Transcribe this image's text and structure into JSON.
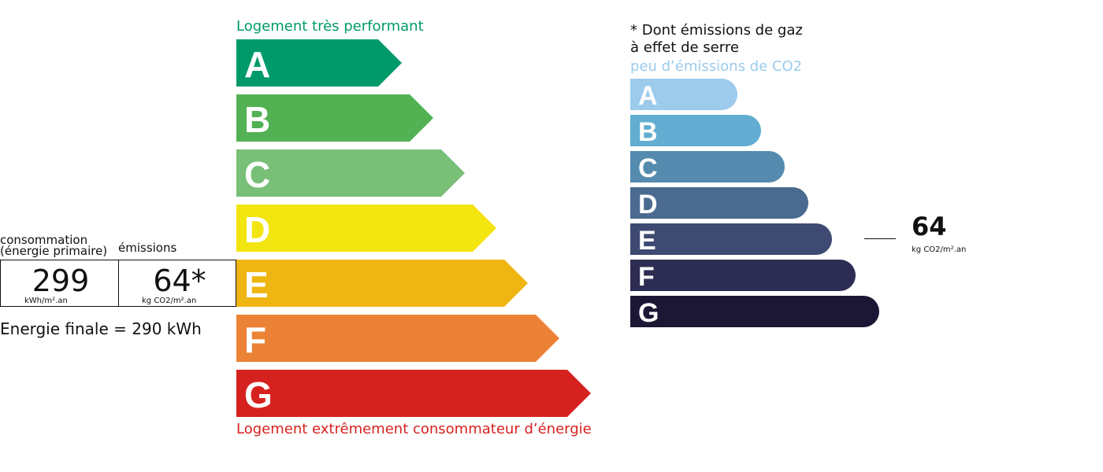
{
  "energy": {
    "top_label": "Logement très performant",
    "bottom_label": "Logement extrêmement consommateur d’énergie",
    "classes": [
      {
        "letter": "A",
        "color": "#009a6a"
      },
      {
        "letter": "B",
        "color": "#52b153"
      },
      {
        "letter": "C",
        "color": "#78bf77"
      },
      {
        "letter": "D",
        "color": "#f2e510"
      },
      {
        "letter": "E",
        "color": "#efb512"
      },
      {
        "letter": "F",
        "color": "#eb8235"
      },
      {
        "letter": "G",
        "color": "#d6221f"
      }
    ]
  },
  "summary": {
    "consumption_label": [
      "consommation",
      "(énergie primaire)"
    ],
    "emissions_label": "émissions",
    "consumption_value": "299",
    "consumption_unit": "kWh/m².an",
    "emissions_value": "64*",
    "emissions_unit": "kg CO2/m².an",
    "final_energy": "Energie finale = 290 kWh"
  },
  "ges": {
    "note": [
      "* Dont émissions de gaz",
      "à effet de serre"
    ],
    "top_label": "peu d’émissions de CO2",
    "classes": [
      {
        "letter": "A",
        "color": "#9ccbec"
      },
      {
        "letter": "B",
        "color": "#62add1"
      },
      {
        "letter": "C",
        "color": "#548baf"
      },
      {
        "letter": "D",
        "color": "#4a6a90"
      },
      {
        "letter": "E",
        "color": "#3e4a72"
      },
      {
        "letter": "F",
        "color": "#2d2c53"
      },
      {
        "letter": "G",
        "color": "#1d1736"
      }
    ],
    "indicator_value": "64",
    "indicator_unit": "kg CO2/m².an"
  }
}
